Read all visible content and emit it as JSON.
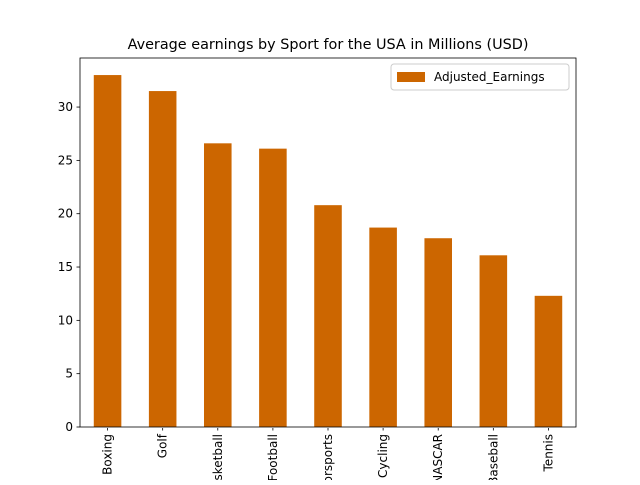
{
  "chart_data": {
    "type": "bar",
    "title": "Average earnings by Sport for the USA in Millions (USD)",
    "xlabel": "",
    "ylabel": "",
    "categories": [
      "Boxing",
      "Golf",
      "Basketball",
      "Football",
      "Motorsports",
      "Cycling",
      "NASCAR",
      "Baseball",
      "Tennis"
    ],
    "visible_tick_text": [
      "Boxing",
      "Golf",
      "etball",
      "ootball",
      "sports",
      "ycling",
      "SCAR",
      "eseball",
      "Tennis"
    ],
    "series": [
      {
        "name": "Adjusted_Earnings",
        "color": "#cc6600",
        "values": [
          33.0,
          31.5,
          26.6,
          26.1,
          20.8,
          18.7,
          17.7,
          16.1,
          12.3
        ]
      }
    ],
    "ylim": [
      0,
      34.6
    ],
    "yticks": [
      0,
      5,
      10,
      15,
      20,
      25,
      30
    ],
    "grid": false,
    "legend_position": "top-right"
  }
}
